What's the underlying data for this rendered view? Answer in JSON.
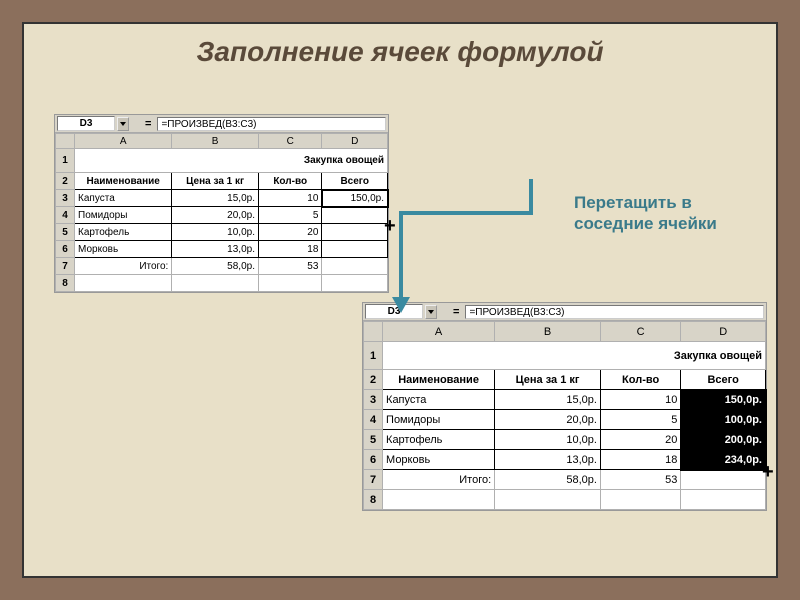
{
  "title": "Заполнение ячеек формулой",
  "arrow_label_line1": "Перетащить в",
  "arrow_label_line2": "соседние ячейки",
  "arrow_color": "#3a8aa0",
  "sheet1": {
    "name_box": "D3",
    "formula": "=ПРОИЗВЕД(B3:C3)",
    "cols": [
      "A",
      "B",
      "C",
      "D"
    ],
    "merged_title": "Закупка овощей",
    "headers": [
      "Наименование",
      "Цена за 1 кг",
      "Кол-во",
      "Всего"
    ],
    "rows": [
      {
        "n": "3",
        "name": "Капуста",
        "price": "15,0р.",
        "qty": "10",
        "total": "150,0р.",
        "active": true
      },
      {
        "n": "4",
        "name": "Помидоры",
        "price": "20,0р.",
        "qty": "5",
        "total": ""
      },
      {
        "n": "5",
        "name": "Картофель",
        "price": "10,0р.",
        "qty": "20",
        "total": ""
      },
      {
        "n": "6",
        "name": "Морковь",
        "price": "13,0р.",
        "qty": "18",
        "total": ""
      },
      {
        "n": "7",
        "name": "Итого:",
        "price": "58,0р.",
        "qty": "53",
        "total": "",
        "itogo": true
      },
      {
        "n": "8",
        "name": "",
        "price": "",
        "qty": "",
        "total": ""
      }
    ]
  },
  "sheet2": {
    "name_box": "D3",
    "formula": "=ПРОИЗВЕД(B3:C3)",
    "cols": [
      "A",
      "B",
      "C",
      "D"
    ],
    "merged_title": "Закупка овощей",
    "headers": [
      "Наименование",
      "Цена за 1 кг",
      "Кол-во",
      "Всего"
    ],
    "rows": [
      {
        "n": "3",
        "name": "Капуста",
        "price": "15,0р.",
        "qty": "10",
        "total": "150,0р.",
        "sel": true
      },
      {
        "n": "4",
        "name": "Помидоры",
        "price": "20,0р.",
        "qty": "5",
        "total": "100,0р.",
        "sel": true
      },
      {
        "n": "5",
        "name": "Картофель",
        "price": "10,0р.",
        "qty": "20",
        "total": "200,0р.",
        "sel": true
      },
      {
        "n": "6",
        "name": "Морковь",
        "price": "13,0р.",
        "qty": "18",
        "total": "234,0р.",
        "sel": true
      },
      {
        "n": "7",
        "name": "Итого:",
        "price": "58,0р.",
        "qty": "53",
        "total": "",
        "itogo": true
      },
      {
        "n": "8",
        "name": "",
        "price": "",
        "qty": "",
        "total": ""
      }
    ]
  }
}
